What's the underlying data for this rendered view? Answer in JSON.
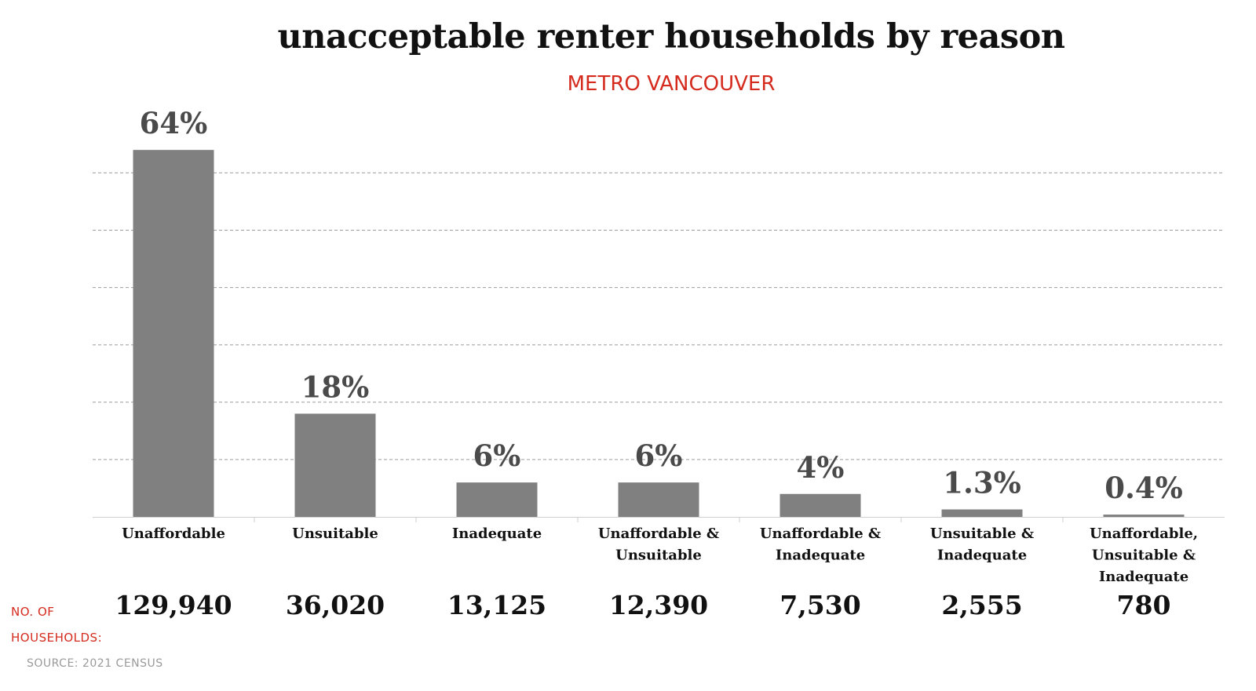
{
  "title": "unacceptable renter households by reason",
  "subtitle": "METRO VANCOUVER",
  "households_label": "NO. OF HOUSEHOLDS:",
  "source": "SOURCE: 2021 CENSUS",
  "colors": {
    "bar": "#808080",
    "accent": "#d52b1e",
    "text": "#111111",
    "value_label": "#4a4a4a",
    "gridline": "#9e9e9e"
  },
  "chart_data": {
    "type": "bar",
    "categories": [
      [
        "Unaffordable"
      ],
      [
        "Unsuitable"
      ],
      [
        "Inadequate"
      ],
      [
        "Unaffordable &",
        "Unsuitable"
      ],
      [
        "Unaffordable &",
        "Inadequate"
      ],
      [
        "Unsuitable &",
        "Inadequate"
      ],
      [
        "Unaffordable,",
        "Unsuitable &",
        "Inadequate"
      ]
    ],
    "values": [
      64,
      18,
      6,
      6,
      4,
      1.3,
      0.4
    ],
    "value_labels": [
      "64%",
      "18%",
      "6%",
      "6%",
      "4%",
      "1.3%",
      "0.4%"
    ],
    "households": [
      "129,940",
      "36,020",
      "13,125",
      "12,390",
      "7,530",
      "2,555",
      "780"
    ],
    "unit": "percent",
    "ylim": [
      0,
      66
    ],
    "gridline_values": [
      10,
      20,
      30,
      40,
      50,
      60
    ],
    "grid": true,
    "legend": "none"
  }
}
